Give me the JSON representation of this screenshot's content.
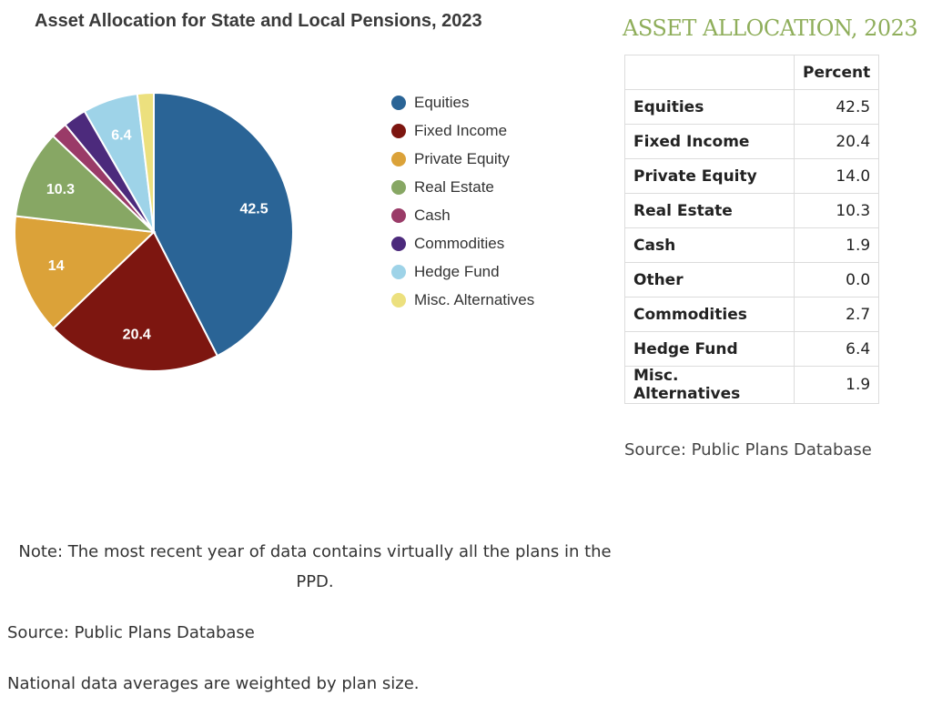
{
  "chart_data": {
    "type": "pie",
    "title": "Asset Allocation for State and Local Pensions, 2023",
    "slices": [
      {
        "name": "Equities",
        "value": 42.5,
        "label": "42.5",
        "color": "#2a6496"
      },
      {
        "name": "Fixed Income",
        "value": 20.4,
        "label": "20.4",
        "color": "#7d1610"
      },
      {
        "name": "Private Equity",
        "value": 14.0,
        "label": "14",
        "color": "#dba239"
      },
      {
        "name": "Real Estate",
        "value": 10.3,
        "label": "10.3",
        "color": "#87a764"
      },
      {
        "name": "Cash",
        "value": 1.9,
        "label": "",
        "color": "#9a3b68"
      },
      {
        "name": "Commodities",
        "value": 2.7,
        "label": "",
        "color": "#4c2a7c"
      },
      {
        "name": "Hedge Fund",
        "value": 6.4,
        "label": "6.4",
        "color": "#9ed3e8"
      },
      {
        "name": "Misc. Alternatives",
        "value": 1.9,
        "label": "",
        "color": "#ece07e"
      }
    ],
    "legend": [
      "Equities",
      "Fixed Income",
      "Private Equity",
      "Real Estate",
      "Cash",
      "Commodities",
      "Hedge Fund",
      "Misc. Alternatives"
    ],
    "legend_position": "right"
  },
  "table": {
    "title": "ASSET ALLOCATION, 2023",
    "header": "Percent",
    "rows": [
      {
        "name": "Equities",
        "value": "42.5"
      },
      {
        "name": "Fixed Income",
        "value": "20.4"
      },
      {
        "name": "Private Equity",
        "value": "14.0"
      },
      {
        "name": "Real Estate",
        "value": "10.3"
      },
      {
        "name": "Cash",
        "value": "1.9"
      },
      {
        "name": "Other",
        "value": "0.0"
      },
      {
        "name": "Commodities",
        "value": "2.7"
      },
      {
        "name": "Hedge Fund",
        "value": "6.4"
      },
      {
        "name": "Misc. Alternatives",
        "value": "1.9"
      }
    ],
    "source": "Source: Public Plans Database"
  },
  "footer": {
    "note": "Note: The most recent year of data contains virtually all the plans in the PPD.",
    "source": "Source: Public Plans Database",
    "weighting": "National data averages are weighted by plan size."
  }
}
